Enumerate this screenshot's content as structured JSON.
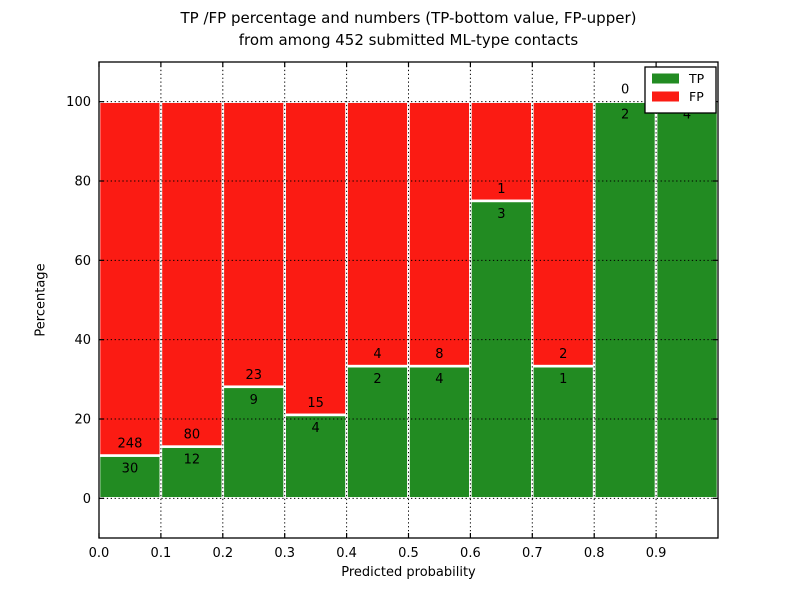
{
  "chart_data": {
    "type": "bar",
    "stacked": true,
    "title": "TP /FP percentage and numbers (TP-bottom value, FP-upper)\nfrom among 452 submitted ML-type contacts",
    "title_line1": "TP /FP percentage and numbers (TP-bottom value, FP-upper)",
    "title_line2": "from among 452 submitted ML-type contacts",
    "xlabel": "Predicted probability",
    "ylabel": "Percentage",
    "total_contacts": 452,
    "xlim": [
      0,
      1
    ],
    "ylim": [
      -10,
      110
    ],
    "xticks": [
      0,
      0.1,
      0.2,
      0.3,
      0.4,
      0.5,
      0.6,
      0.7,
      0.8,
      0.9
    ],
    "yticks": [
      0,
      20,
      40,
      60,
      80,
      100
    ],
    "grid": {
      "show": true,
      "style": "dotted",
      "color": "#000000"
    },
    "legend": {
      "position": "upper right",
      "entries": [
        {
          "label": "TP",
          "series": "tp"
        },
        {
          "label": "FP",
          "series": "fp"
        }
      ]
    },
    "colors": {
      "tp": "#228b22",
      "fp": "#fb1b13",
      "bar_edge": "#ffffff",
      "axis": "#000000",
      "text": "#000000",
      "background": "#ffffff"
    },
    "series": [
      {
        "name": "TP",
        "values": [
          30,
          12,
          9,
          4,
          2,
          4,
          3,
          1,
          2,
          4
        ]
      },
      {
        "name": "FP",
        "values": [
          248,
          80,
          23,
          15,
          4,
          8,
          1,
          2,
          0,
          0
        ]
      }
    ],
    "bins": [
      {
        "range": [
          0.0,
          0.1
        ],
        "tp": 30,
        "fp": 248,
        "tp_pct": 10.79
      },
      {
        "range": [
          0.1,
          0.2
        ],
        "tp": 12,
        "fp": 80,
        "tp_pct": 13.04
      },
      {
        "range": [
          0.2,
          0.3
        ],
        "tp": 9,
        "fp": 23,
        "tp_pct": 28.13
      },
      {
        "range": [
          0.3,
          0.4
        ],
        "tp": 4,
        "fp": 15,
        "tp_pct": 21.05
      },
      {
        "range": [
          0.4,
          0.5
        ],
        "tp": 2,
        "fp": 4,
        "tp_pct": 33.33
      },
      {
        "range": [
          0.5,
          0.6
        ],
        "tp": 4,
        "fp": 8,
        "tp_pct": 33.33
      },
      {
        "range": [
          0.6,
          0.7
        ],
        "tp": 3,
        "fp": 1,
        "tp_pct": 75.0
      },
      {
        "range": [
          0.7,
          0.8
        ],
        "tp": 1,
        "fp": 2,
        "tp_pct": 33.33
      },
      {
        "range": [
          0.8,
          0.9
        ],
        "tp": 2,
        "fp": 0,
        "tp_pct": 100.0
      },
      {
        "range": [
          0.9,
          1.0
        ],
        "tp": 4,
        "fp": 0,
        "tp_pct": 100.0
      }
    ]
  }
}
